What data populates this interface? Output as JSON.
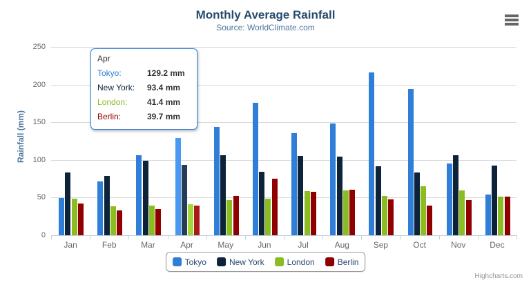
{
  "chart_data": {
    "type": "bar",
    "title": "Monthly Average Rainfall",
    "subtitle": "Source: WorldClimate.com",
    "categories": [
      "Jan",
      "Feb",
      "Mar",
      "Apr",
      "May",
      "Jun",
      "Jul",
      "Aug",
      "Sep",
      "Oct",
      "Nov",
      "Dec"
    ],
    "series": [
      {
        "name": "Tokyo",
        "color": "#2f7ed8",
        "hover_color": "#4998f2",
        "values": [
          49.9,
          71.5,
          106.4,
          129.2,
          144.0,
          176.0,
          135.6,
          148.5,
          216.4,
          194.1,
          95.6,
          54.4
        ]
      },
      {
        "name": "New York",
        "color": "#0d233a",
        "hover_color": "#273d54",
        "values": [
          83.6,
          78.8,
          98.5,
          93.4,
          106.0,
          84.5,
          105.0,
          104.3,
          91.2,
          83.5,
          106.6,
          92.3
        ]
      },
      {
        "name": "London",
        "color": "#8bbc21",
        "hover_color": "#a5d63b",
        "values": [
          48.9,
          38.8,
          39.3,
          41.4,
          47.0,
          48.3,
          59.0,
          59.6,
          52.4,
          65.2,
          59.3,
          51.2
        ]
      },
      {
        "name": "Berlin",
        "color": "#910000",
        "hover_color": "#ab1a1a",
        "values": [
          42.4,
          33.2,
          34.5,
          39.7,
          52.6,
          75.5,
          57.4,
          60.4,
          47.6,
          39.1,
          46.8,
          51.1
        ]
      }
    ],
    "xlabel": "",
    "ylabel": "Rainfall (mm)",
    "ylim": [
      0,
      250
    ],
    "yticks": [
      0,
      50,
      100,
      150,
      200,
      250
    ],
    "grid": true,
    "legend_position": "bottom",
    "hovered_category": "Apr"
  },
  "tooltip": {
    "header": "Apr",
    "border_color": "#2f7ed8",
    "rows": [
      {
        "label": "Tokyo:",
        "value": "129.2 mm",
        "color": "#2f7ed8"
      },
      {
        "label": "New York:",
        "value": "93.4 mm",
        "color": "#0d233a"
      },
      {
        "label": "London:",
        "value": "41.4 mm",
        "color": "#8bbc21"
      },
      {
        "label": "Berlin:",
        "value": "39.7 mm",
        "color": "#910000"
      }
    ]
  },
  "colors": {
    "title": "#274b6d",
    "subtitle": "#4d759e",
    "axis_label": "#666666",
    "axis_line": "#c0d0e0",
    "gridline": "#d8d8d8",
    "legend_text": "#274b6d"
  },
  "credits": "Highcharts.com"
}
